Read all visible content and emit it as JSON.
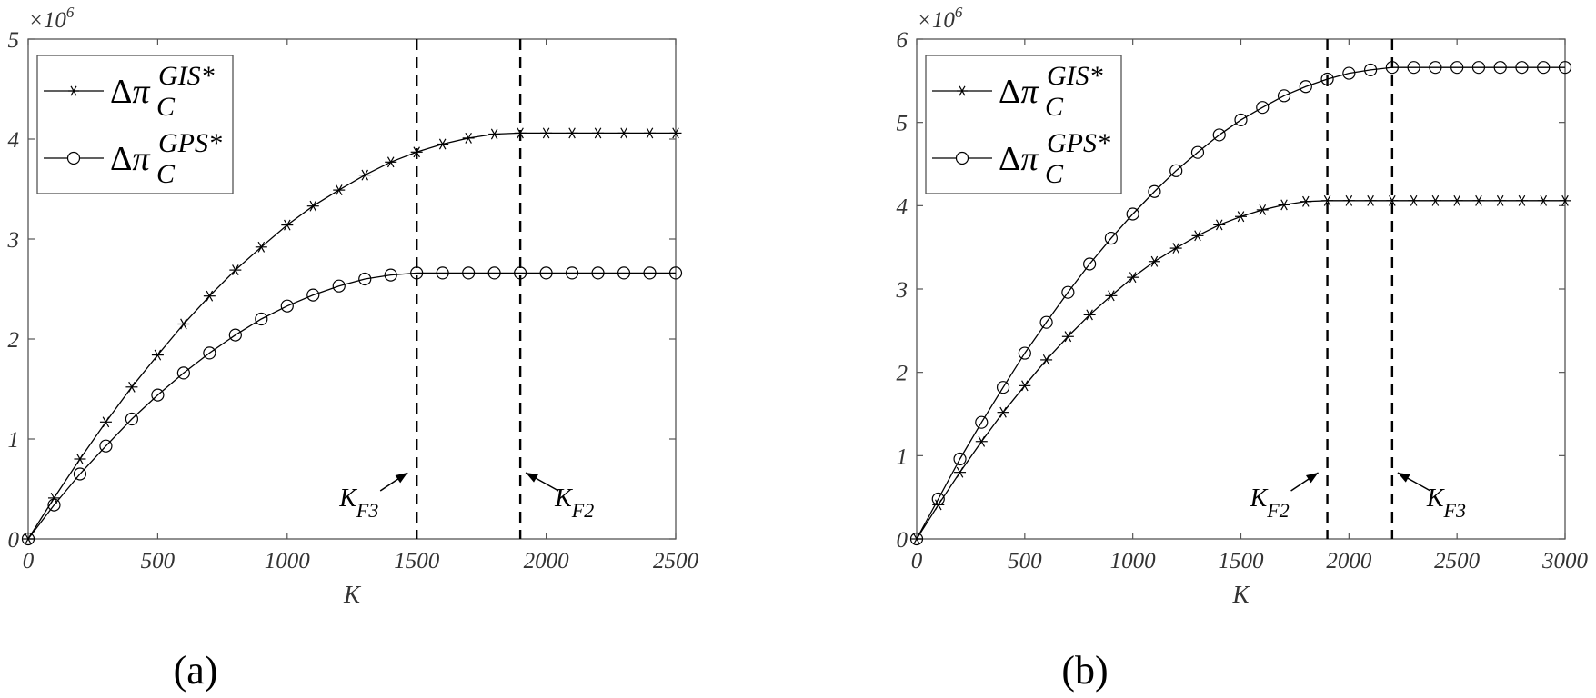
{
  "chart_data": [
    {
      "type": "line",
      "panel_label": "(a)",
      "title": "",
      "xlabel": "K",
      "ylabel": "",
      "y_multiplier": "×10^6",
      "xlim": [
        0,
        2500
      ],
      "ylim": [
        0,
        5
      ],
      "xticks": [
        0,
        500,
        1000,
        1500,
        2000,
        2500
      ],
      "yticks": [
        0,
        1,
        2,
        3,
        4,
        5
      ],
      "grid": false,
      "legend_position": "upper left",
      "x": [
        0,
        100,
        200,
        300,
        400,
        500,
        600,
        700,
        800,
        900,
        1000,
        1100,
        1200,
        1300,
        1400,
        1500,
        1600,
        1700,
        1800,
        1900,
        2000,
        2100,
        2200,
        2300,
        2400,
        2500
      ],
      "series": [
        {
          "name": "Δπ_C^{GIS*}",
          "marker": "asterisk",
          "values": [
            0,
            0.41,
            0.8,
            1.17,
            1.52,
            1.84,
            2.15,
            2.43,
            2.69,
            2.92,
            3.14,
            3.33,
            3.49,
            3.64,
            3.77,
            3.87,
            3.95,
            4.01,
            4.05,
            4.06,
            4.06,
            4.06,
            4.06,
            4.06,
            4.06,
            4.06
          ]
        },
        {
          "name": "Δπ_C^{GPS*}",
          "marker": "circle",
          "values": [
            0,
            0.34,
            0.65,
            0.93,
            1.2,
            1.44,
            1.66,
            1.86,
            2.04,
            2.2,
            2.33,
            2.44,
            2.53,
            2.6,
            2.64,
            2.66,
            2.66,
            2.66,
            2.66,
            2.66,
            2.66,
            2.66,
            2.66,
            2.66,
            2.66,
            2.66
          ]
        }
      ],
      "vlines": [
        {
          "x": 1500,
          "label": "K",
          "sub": "F3",
          "style": "dashed",
          "label_side": "left"
        },
        {
          "x": 1900,
          "label": "K",
          "sub": "F2",
          "style": "dashed",
          "label_side": "right"
        }
      ]
    },
    {
      "type": "line",
      "panel_label": "(b)",
      "title": "",
      "xlabel": "K",
      "ylabel": "",
      "y_multiplier": "×10^6",
      "xlim": [
        0,
        3000
      ],
      "ylim": [
        0,
        6
      ],
      "xticks": [
        0,
        500,
        1000,
        1500,
        2000,
        2500,
        3000
      ],
      "yticks": [
        0,
        1,
        2,
        3,
        4,
        5,
        6
      ],
      "grid": false,
      "legend_position": "upper left",
      "x": [
        0,
        100,
        200,
        300,
        400,
        500,
        600,
        700,
        800,
        900,
        1000,
        1100,
        1200,
        1300,
        1400,
        1500,
        1600,
        1700,
        1800,
        1900,
        2000,
        2100,
        2200,
        2300,
        2400,
        2500,
        2600,
        2700,
        2800,
        2900,
        3000
      ],
      "series": [
        {
          "name": "Δπ_C^{GIS*}",
          "marker": "asterisk",
          "values": [
            0,
            0.41,
            0.8,
            1.17,
            1.52,
            1.84,
            2.15,
            2.43,
            2.69,
            2.92,
            3.14,
            3.33,
            3.49,
            3.64,
            3.77,
            3.87,
            3.95,
            4.01,
            4.05,
            4.06,
            4.06,
            4.06,
            4.06,
            4.06,
            4.06,
            4.06,
            4.06,
            4.06,
            4.06,
            4.06,
            4.06
          ]
        },
        {
          "name": "Δπ_C^{GPS*}",
          "marker": "circle",
          "values": [
            0,
            0.48,
            0.96,
            1.4,
            1.82,
            2.23,
            2.6,
            2.96,
            3.3,
            3.61,
            3.9,
            4.17,
            4.42,
            4.64,
            4.85,
            5.03,
            5.18,
            5.32,
            5.43,
            5.52,
            5.59,
            5.63,
            5.66,
            5.66,
            5.66,
            5.66,
            5.66,
            5.66,
            5.66,
            5.66,
            5.66
          ]
        }
      ],
      "vlines": [
        {
          "x": 1900,
          "label": "K",
          "sub": "F2",
          "style": "dashed",
          "label_side": "left"
        },
        {
          "x": 2200,
          "label": "K",
          "sub": "F3",
          "style": "dashed",
          "label_side": "right"
        }
      ]
    }
  ],
  "legend": {
    "symbol": "Δπ",
    "sub": "C",
    "sup_gis": "GIS*",
    "sup_gps": "GPS*"
  },
  "multiplier": {
    "base": "×10",
    "exp": "6"
  }
}
